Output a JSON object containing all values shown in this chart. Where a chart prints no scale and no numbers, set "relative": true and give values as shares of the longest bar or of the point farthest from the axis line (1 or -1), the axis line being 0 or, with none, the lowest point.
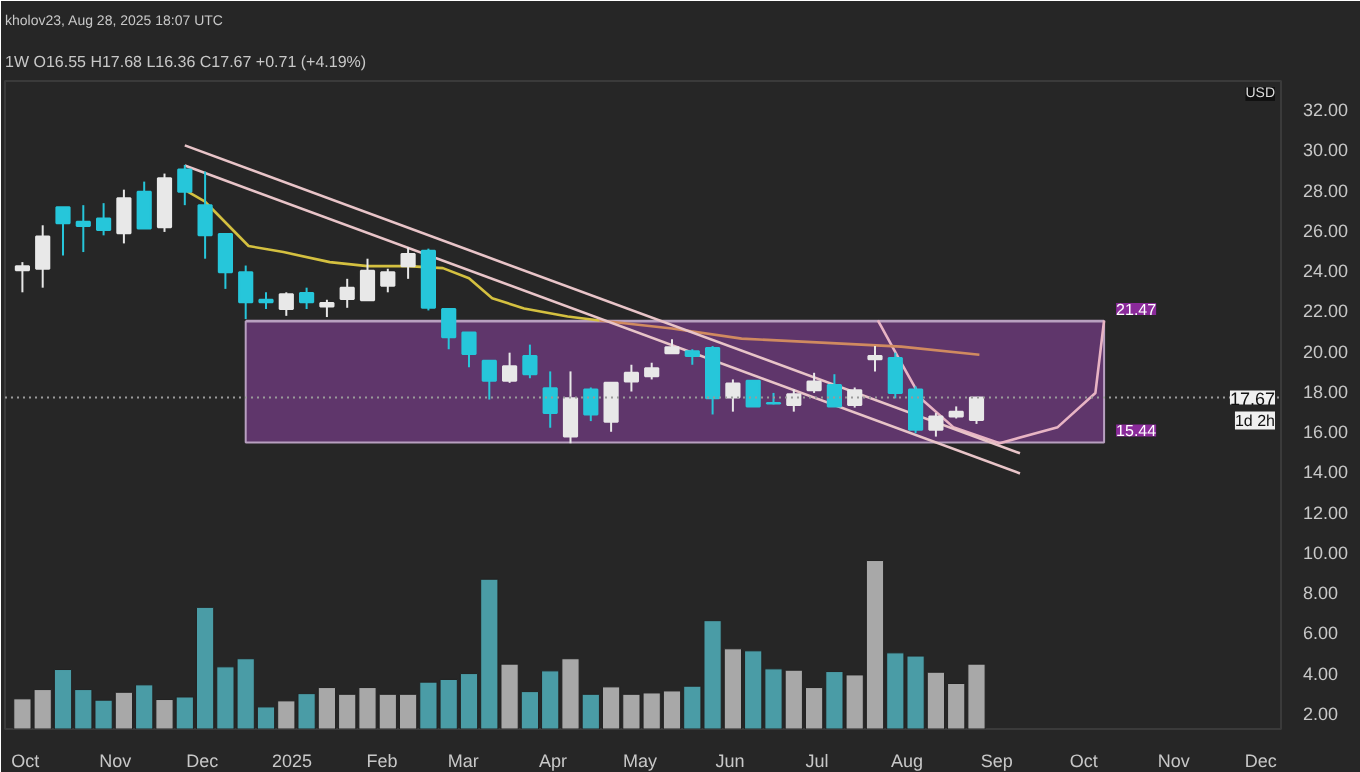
{
  "chart_data": [
    {
      "type": "candlestick",
      "title": "1W  O16.55  H17.68  L16.36  C17.67  +0.71 (+4.19%)",
      "annotations": [
        "kholov23, Aug 28, 2025 18:07 UTC",
        "USD",
        "21.47",
        "15.44",
        "1d 2h"
      ],
      "x": [
        "2024-09-30",
        "2024-10-07",
        "2024-10-14",
        "2024-10-21",
        "2024-10-28",
        "2024-11-04",
        "2024-11-11",
        "2024-11-18",
        "2024-11-25",
        "2024-12-02",
        "2024-12-09",
        "2024-12-16",
        "2024-12-23",
        "2024-12-30",
        "2025-01-06",
        "2025-01-13",
        "2025-01-20",
        "2025-01-27",
        "2025-02-03",
        "2025-02-10",
        "2025-02-17",
        "2025-02-24",
        "2025-03-03",
        "2025-03-10",
        "2025-03-17",
        "2025-03-24",
        "2025-03-31",
        "2025-04-07",
        "2025-04-14",
        "2025-04-21",
        "2025-04-28",
        "2025-05-05",
        "2025-05-12",
        "2025-05-19",
        "2025-05-26",
        "2025-06-02",
        "2025-06-09",
        "2025-06-16",
        "2025-06-23",
        "2025-06-30",
        "2025-07-07",
        "2025-07-14",
        "2025-07-21",
        "2025-07-28",
        "2025-08-04",
        "2025-08-11",
        "2025-08-18",
        "2025-08-25"
      ],
      "ohlc": [
        [
          24.0,
          24.4,
          22.9,
          24.2
        ],
        [
          24.07,
          26.23,
          23.13,
          25.67
        ],
        [
          27.13,
          27.13,
          24.73,
          26.33
        ],
        [
          26.4,
          27.23,
          24.9,
          26.2
        ],
        [
          26.57,
          27.33,
          25.73,
          26.0
        ],
        [
          25.83,
          28.0,
          25.33,
          27.57
        ],
        [
          27.9,
          28.4,
          26.07,
          26.07
        ],
        [
          26.13,
          28.8,
          25.9,
          28.57
        ],
        [
          29.0,
          29.23,
          27.23,
          27.9
        ],
        [
          27.23,
          28.9,
          24.57,
          25.73
        ],
        [
          25.8,
          25.8,
          23.07,
          23.9
        ],
        [
          23.9,
          24.23,
          21.57,
          22.4
        ],
        [
          22.53,
          22.9,
          22.07,
          22.4
        ],
        [
          22.07,
          22.9,
          21.73,
          22.8
        ],
        [
          22.87,
          23.13,
          22.07,
          22.4
        ],
        [
          22.2,
          22.53,
          21.67,
          22.37
        ],
        [
          22.57,
          23.57,
          22.13,
          23.13
        ],
        [
          22.5,
          24.57,
          22.5,
          23.97
        ],
        [
          23.23,
          24.07,
          22.9,
          23.9
        ],
        [
          24.2,
          25.13,
          23.57,
          24.8
        ],
        [
          24.97,
          25.07,
          22.0,
          22.13
        ],
        [
          22.07,
          22.07,
          20.07,
          20.67
        ],
        [
          20.9,
          20.9,
          19.17,
          19.83
        ],
        [
          19.5,
          19.5,
          17.57,
          18.5
        ],
        [
          18.5,
          19.9,
          18.4,
          19.23
        ],
        [
          19.73,
          20.3,
          18.63,
          18.83
        ],
        [
          18.13,
          18.97,
          16.17,
          16.9
        ],
        [
          15.73,
          18.97,
          15.4,
          17.63
        ],
        [
          18.07,
          18.17,
          16.5,
          16.83
        ],
        [
          16.47,
          18.4,
          15.97,
          18.4
        ],
        [
          18.47,
          19.3,
          17.97,
          18.9
        ],
        [
          18.73,
          19.4,
          18.57,
          19.13
        ],
        [
          19.87,
          20.57,
          19.83,
          20.17
        ],
        [
          19.97,
          20.07,
          19.3,
          19.73
        ],
        [
          20.13,
          20.23,
          16.83,
          17.63
        ],
        [
          17.67,
          18.57,
          16.97,
          18.37
        ],
        [
          18.5,
          18.5,
          17.23,
          17.23
        ],
        [
          17.4,
          17.9,
          17.33,
          17.37
        ],
        [
          17.3,
          18.07,
          16.97,
          17.83
        ],
        [
          18.03,
          18.9,
          17.9,
          18.47
        ],
        [
          18.3,
          18.83,
          17.23,
          17.23
        ],
        [
          17.3,
          18.17,
          17.17,
          18.03
        ],
        [
          19.57,
          20.23,
          18.97,
          19.73
        ],
        [
          19.63,
          19.9,
          17.63,
          17.9
        ],
        [
          18.07,
          18.23,
          15.9,
          16.07
        ],
        [
          16.07,
          16.9,
          15.73,
          16.73
        ],
        [
          16.73,
          17.23,
          16.63,
          16.97
        ],
        [
          16.55,
          17.68,
          16.36,
          17.67
        ]
      ],
      "colors": [
        "#e8e8e8",
        "#e8e8e8",
        "#26c6da",
        "#26c6da",
        "#26c6da",
        "#e8e8e8",
        "#26c6da",
        "#e8e8e8",
        "#26c6da",
        "#26c6da",
        "#26c6da",
        "#26c6da",
        "#26c6da",
        "#e8e8e8",
        "#26c6da",
        "#e8e8e8",
        "#e8e8e8",
        "#e8e8e8",
        "#e8e8e8",
        "#e8e8e8",
        "#26c6da",
        "#26c6da",
        "#26c6da",
        "#26c6da",
        "#e8e8e8",
        "#26c6da",
        "#26c6da",
        "#e8e8e8",
        "#26c6da",
        "#e8e8e8",
        "#e8e8e8",
        "#e8e8e8",
        "#e8e8e8",
        "#26c6da",
        "#26c6da",
        "#e8e8e8",
        "#26c6da",
        "#26c6da",
        "#e8e8e8",
        "#e8e8e8",
        "#26c6da",
        "#e8e8e8",
        "#e8e8e8",
        "#26c6da",
        "#26c6da",
        "#e8e8e8",
        "#e8e8e8",
        "#e8e8e8"
      ],
      "xlim": [
        "2024-09-24",
        "2025-12-08"
      ],
      "xticks": [
        {
          "value": "2024-10-01",
          "label": "Oct"
        },
        {
          "value": "2024-11-01",
          "label": "Nov"
        },
        {
          "value": "2024-12-01",
          "label": "Dec"
        },
        {
          "value": "2025-01-01",
          "label": "2025"
        },
        {
          "value": "2025-02-01",
          "label": "Feb"
        },
        {
          "value": "2025-03-01",
          "label": "Mar"
        },
        {
          "value": "2025-04-01",
          "label": "Apr"
        },
        {
          "value": "2025-05-01",
          "label": "May"
        },
        {
          "value": "2025-06-01",
          "label": "Jun"
        },
        {
          "value": "2025-07-01",
          "label": "Jul"
        },
        {
          "value": "2025-08-01",
          "label": "Aug"
        },
        {
          "value": "2025-09-01",
          "label": "Sep"
        },
        {
          "value": "2025-10-01",
          "label": "Oct"
        },
        {
          "value": "2025-11-01",
          "label": "Nov"
        },
        {
          "value": "2025-12-01",
          "label": "Dec"
        }
      ],
      "ylim": [
        1.2,
        33.4
      ],
      "yticks": [
        {
          "value": 2,
          "label": "2.00"
        },
        {
          "value": 4,
          "label": "4.00"
        },
        {
          "value": 6,
          "label": "6.00"
        },
        {
          "value": 8,
          "label": "8.00"
        },
        {
          "value": 10,
          "label": "10.00"
        },
        {
          "value": 12,
          "label": "12.00"
        },
        {
          "value": 14,
          "label": "14.00"
        },
        {
          "value": 16,
          "label": "16.00"
        },
        {
          "value": 18,
          "label": "18.00"
        },
        {
          "value": 20,
          "label": "20.00"
        },
        {
          "value": 22,
          "label": "22.00"
        },
        {
          "value": 24,
          "label": "24.00"
        },
        {
          "value": 26,
          "label": "26.00"
        },
        {
          "value": 28,
          "label": "28.00"
        },
        {
          "value": 30,
          "label": "30.00"
        },
        {
          "value": 32,
          "label": "32.00"
        }
      ],
      "grid": false,
      "ref_lines": [
        {
          "axis": "y",
          "value": 17.67,
          "label": "17.67",
          "color": "#9a9a9a",
          "line_style": "dotted"
        }
      ],
      "series": [
        {
          "type": "line",
          "color": "#b8a0c0",
          "x": [
            "2024-12-16",
            "2025-10-08"
          ],
          "values": [
            21.47,
            21.47
          ],
          "lower": [
            15.44,
            15.44
          ],
          "upper": [
            21.47,
            21.47
          ]
        },
        {
          "type": "line",
          "color": "#e8b4c4",
          "x": [
            "2025-07-22",
            "2025-07-30",
            "2025-08-06",
            "2025-08-17",
            "2025-09-02",
            "2025-09-22",
            "2025-10-05",
            "2025-10-08"
          ],
          "values": [
            21.5,
            19.4,
            17.6,
            16.2,
            15.4,
            16.2,
            17.9,
            21.5
          ]
        },
        {
          "type": "line",
          "color": "#d4c040",
          "x": [
            "2024-11-26",
            "2024-12-02",
            "2024-12-17",
            "2024-12-29",
            "2025-01-14",
            "2025-01-27",
            "2025-02-10",
            "2025-02-22",
            "2025-03-03",
            "2025-03-11",
            "2025-03-22",
            "2025-04-06",
            "2025-04-17"
          ],
          "values": [
            27.9,
            27.4,
            25.2,
            24.9,
            24.4,
            24.2,
            24.2,
            24.1,
            23.6,
            22.6,
            22.1,
            21.7,
            21.5
          ]
        },
        {
          "type": "line",
          "color": "#d08a60",
          "x": [
            "2025-04-17",
            "2025-05-12",
            "2025-06-05",
            "2025-07-30",
            "2025-08-26"
          ],
          "values": [
            21.5,
            21.1,
            20.6,
            20.2,
            19.8
          ]
        },
        {
          "type": "line",
          "color": "#e8c4c8",
          "x": [
            "2024-11-25",
            "2025-09-09"
          ],
          "values": [
            30.2,
            14.9
          ]
        },
        {
          "type": "line",
          "color": "#e8c4c8",
          "x": [
            "2024-11-25",
            "2025-09-09"
          ],
          "values": [
            29.2,
            13.9
          ]
        }
      ]
    },
    {
      "type": "bar",
      "relative": true,
      "tick_labels": false,
      "xlim": [
        "2024-09-24",
        "2025-12-08"
      ],
      "x": [
        "2024-09-30",
        "2024-10-07",
        "2024-10-14",
        "2024-10-21",
        "2024-10-28",
        "2024-11-04",
        "2024-11-11",
        "2024-11-18",
        "2024-11-25",
        "2024-12-02",
        "2024-12-09",
        "2024-12-16",
        "2024-12-23",
        "2024-12-30",
        "2025-01-06",
        "2025-01-13",
        "2025-01-20",
        "2025-01-27",
        "2025-02-03",
        "2025-02-10",
        "2025-02-17",
        "2025-02-24",
        "2025-03-03",
        "2025-03-10",
        "2025-03-17",
        "2025-03-24",
        "2025-03-31",
        "2025-04-07",
        "2025-04-14",
        "2025-04-21",
        "2025-04-28",
        "2025-05-05",
        "2025-05-12",
        "2025-05-19",
        "2025-05-26",
        "2025-06-02",
        "2025-06-09",
        "2025-06-16",
        "2025-06-23",
        "2025-06-30",
        "2025-07-07",
        "2025-07-14",
        "2025-07-21",
        "2025-07-28",
        "2025-08-04",
        "2025-08-11",
        "2025-08-18",
        "2025-08-25"
      ],
      "values": [
        0.179,
        0.234,
        0.353,
        0.234,
        0.171,
        0.218,
        0.262,
        0.175,
        0.19,
        0.722,
        0.369,
        0.417,
        0.131,
        0.167,
        0.21,
        0.246,
        0.206,
        0.246,
        0.206,
        0.206,
        0.278,
        0.294,
        0.329,
        0.889,
        0.385,
        0.222,
        0.345,
        0.417,
        0.206,
        0.25,
        0.206,
        0.214,
        0.226,
        0.254,
        0.643,
        0.476,
        0.464,
        0.357,
        0.349,
        0.246,
        0.341,
        0.321,
        1.0,
        0.452,
        0.433,
        0.337,
        0.27,
        0.385
      ],
      "colors": [
        "#a8a8a8",
        "#a8a8a8",
        "#4a9ca6",
        "#4a9ca6",
        "#4a9ca6",
        "#a8a8a8",
        "#4a9ca6",
        "#a8a8a8",
        "#4a9ca6",
        "#4a9ca6",
        "#4a9ca6",
        "#4a9ca6",
        "#4a9ca6",
        "#a8a8a8",
        "#4a9ca6",
        "#a8a8a8",
        "#a8a8a8",
        "#a8a8a8",
        "#a8a8a8",
        "#a8a8a8",
        "#4a9ca6",
        "#4a9ca6",
        "#4a9ca6",
        "#4a9ca6",
        "#a8a8a8",
        "#4a9ca6",
        "#4a9ca6",
        "#a8a8a8",
        "#4a9ca6",
        "#a8a8a8",
        "#a8a8a8",
        "#a8a8a8",
        "#a8a8a8",
        "#4a9ca6",
        "#4a9ca6",
        "#a8a8a8",
        "#4a9ca6",
        "#4a9ca6",
        "#a8a8a8",
        "#a8a8a8",
        "#4a9ca6",
        "#a8a8a8",
        "#a8a8a8",
        "#4a9ca6",
        "#4a9ca6",
        "#a8a8a8",
        "#a8a8a8",
        "#a8a8a8"
      ]
    }
  ]
}
